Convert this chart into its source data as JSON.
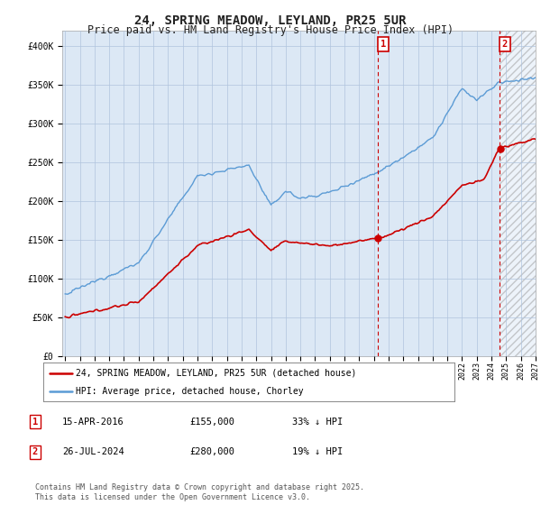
{
  "title": "24, SPRING MEADOW, LEYLAND, PR25 5UR",
  "subtitle": "Price paid vs. HM Land Registry's House Price Index (HPI)",
  "ylim": [
    0,
    420000
  ],
  "yticks": [
    0,
    50000,
    100000,
    150000,
    200000,
    250000,
    300000,
    350000,
    400000
  ],
  "ytick_labels": [
    "£0",
    "£50K",
    "£100K",
    "£150K",
    "£200K",
    "£250K",
    "£300K",
    "£350K",
    "£400K"
  ],
  "legend_house": "24, SPRING MEADOW, LEYLAND, PR25 5UR (detached house)",
  "legend_hpi": "HPI: Average price, detached house, Chorley",
  "house_color": "#cc0000",
  "hpi_color": "#5b9bd5",
  "hpi_fill_color": "#dce8f5",
  "marker1_date": 2016.29,
  "marker1_label": "1",
  "marker1_price": 155000,
  "marker1_hpi_note": "33% ↓ HPI",
  "marker1_date_str": "15-APR-2016",
  "marker2_date": 2024.56,
  "marker2_label": "2",
  "marker2_price": 280000,
  "marker2_hpi_note": "19% ↓ HPI",
  "marker2_date_str": "26-JUL-2024",
  "footer": "Contains HM Land Registry data © Crown copyright and database right 2025.\nThis data is licensed under the Open Government Licence v3.0.",
  "background_color": "#ffffff",
  "plot_background": "#dce8f5",
  "grid_color": "#b0c4de",
  "title_fontsize": 10,
  "subtitle_fontsize": 8.5,
  "tick_fontsize": 7,
  "legend_fontsize": 7.5,
  "footer_fontsize": 6
}
